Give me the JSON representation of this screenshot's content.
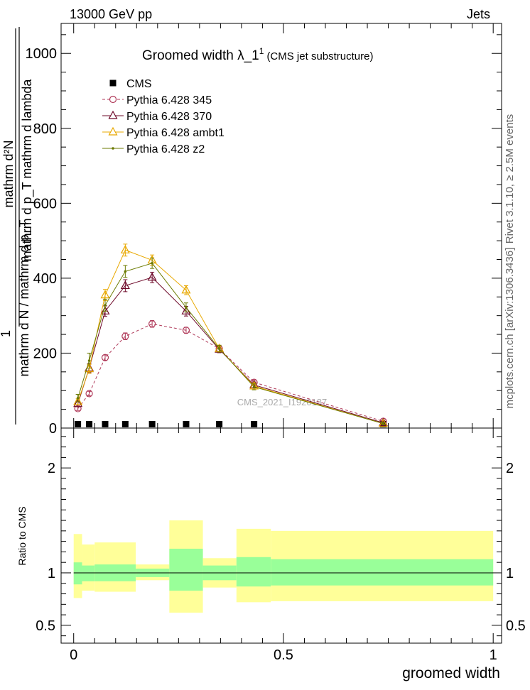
{
  "header": {
    "energy_label": "13000 GeV pp",
    "process_label": "Jets"
  },
  "side_labels": {
    "rivet": "Rivet 3.1.10, ≥ 2.5M events",
    "mcplots": "mcplots.cern.ch [arXiv:1306.3436]"
  },
  "chart_data": {
    "type": "line",
    "title": "Groomed width  λ_1",
    "title_superscript": "1",
    "subtitle": "(CMS jet substructure)",
    "watermark": "CMS_2021_I1920187",
    "xlabel": "groomed width",
    "ylabel": {
      "numerator": "mathrm d²N",
      "denominator": "mathrm d p_T mathrm d lambda",
      "prefix_numerator": "1",
      "prefix_denominator": "mathrm d N / mathrm d p_T"
    },
    "xlim": [
      -0.03,
      1.02
    ],
    "ylim": [
      0,
      1080
    ],
    "yticks": [
      0,
      200,
      400,
      600,
      800,
      1000
    ],
    "xticks": [
      0,
      0.5,
      1
    ],
    "x_tick_labels": [
      "0",
      "0.5",
      "1"
    ],
    "y_tick_labels": [
      "0",
      "200",
      "400",
      "600",
      "800",
      "1000"
    ],
    "x": [
      0.01,
      0.037,
      0.075,
      0.123,
      0.187,
      0.268,
      0.347,
      0.43,
      0.738
    ],
    "bin_edges": [
      0,
      0.02,
      0.055,
      0.1,
      0.148,
      0.228,
      0.308,
      0.388,
      0.47,
      1.0
    ],
    "series": [
      {
        "name": "CMS",
        "marker": "square",
        "color": "#000000",
        "dash": "none",
        "values": [
          2,
          2,
          2,
          2,
          2,
          2,
          2,
          2,
          2
        ],
        "errors": [
          0,
          0,
          0,
          0,
          0,
          0,
          0,
          0,
          0
        ]
      },
      {
        "name": "Pythia 6.428 345",
        "marker": "circle",
        "color": "#b03a5a",
        "dash": "4,3",
        "values": [
          52,
          92,
          188,
          245,
          278,
          261,
          212,
          122,
          18
        ],
        "errors": [
          5,
          6,
          7,
          9,
          9,
          8,
          7,
          6,
          3
        ]
      },
      {
        "name": "Pythia 6.428 370",
        "marker": "triangle",
        "color": "#6e0a2a",
        "dash": "none",
        "values": [
          65,
          160,
          312,
          380,
          402,
          312,
          210,
          115,
          14
        ],
        "errors": [
          8,
          12,
          14,
          16,
          14,
          13,
          9,
          8,
          3
        ]
      },
      {
        "name": "Pythia 6.428 ambt1",
        "marker": "triangle",
        "color": "#e8a800",
        "dash": "none",
        "values": [
          70,
          158,
          355,
          475,
          448,
          368,
          212,
          112,
          12
        ],
        "errors": [
          8,
          12,
          15,
          16,
          14,
          12,
          9,
          8,
          3
        ]
      },
      {
        "name": "Pythia 6.428 z2",
        "marker": "dot",
        "color": "#6b7a00",
        "dash": "none",
        "values": [
          80,
          180,
          328,
          418,
          440,
          322,
          212,
          110,
          12
        ],
        "errors": [
          10,
          20,
          16,
          16,
          14,
          12,
          9,
          8,
          3
        ]
      }
    ],
    "ratio": {
      "ylabel": "Ratio to CMS",
      "ylim": [
        0.33,
        2.38
      ],
      "yticks": [
        0.5,
        1,
        2
      ],
      "y_tick_labels": [
        "0.5",
        "1",
        "2"
      ],
      "reference_line": 1,
      "bands": [
        {
          "x0": 0.0,
          "x1": 0.02,
          "yellow": [
            0.76,
            1.37
          ],
          "green": [
            0.89,
            1.1
          ]
        },
        {
          "x0": 0.02,
          "x1": 0.05,
          "yellow": [
            0.83,
            1.27
          ],
          "green": [
            0.92,
            1.07
          ]
        },
        {
          "x0": 0.05,
          "x1": 0.148,
          "yellow": [
            0.82,
            1.29
          ],
          "green": [
            0.92,
            1.08
          ]
        },
        {
          "x0": 0.148,
          "x1": 0.228,
          "yellow": [
            0.93,
            1.08
          ],
          "green": [
            0.96,
            1.04
          ]
        },
        {
          "x0": 0.228,
          "x1": 0.308,
          "yellow": [
            0.62,
            1.5
          ],
          "green": [
            0.83,
            1.23
          ]
        },
        {
          "x0": 0.308,
          "x1": 0.388,
          "yellow": [
            0.86,
            1.14
          ],
          "green": [
            0.93,
            1.07
          ]
        },
        {
          "x0": 0.388,
          "x1": 0.47,
          "yellow": [
            0.72,
            1.42
          ],
          "green": [
            0.87,
            1.15
          ]
        },
        {
          "x0": 0.47,
          "x1": 1.0,
          "yellow": [
            0.73,
            1.4
          ],
          "green": [
            0.88,
            1.13
          ]
        }
      ],
      "yellow_color": "#ffff99",
      "green_color": "#99ff99"
    },
    "legend_position": "top-left"
  }
}
